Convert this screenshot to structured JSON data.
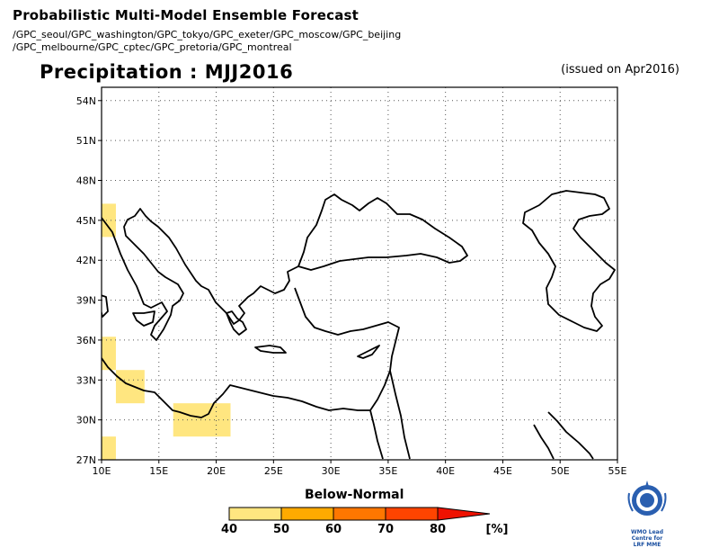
{
  "header": {
    "title": "Probabilistic Multi-Model Ensemble Forecast",
    "sources_line1": "/GPC_seoul/GPC_washington/GPC_tokyo/GPC_exeter/GPC_moscow/GPC_beijing",
    "sources_line2": "/GPC_melbourne/GPC_cptec/GPC_pretoria/GPC_montreal"
  },
  "map": {
    "title": "Precipitation : MJJ2016",
    "issued": "(issued on Apr2016)",
    "lat_labels": [
      "54N",
      "51N",
      "48N",
      "45N",
      "42N",
      "39N",
      "36N",
      "33N",
      "30N",
      "27N"
    ],
    "lon_labels": [
      "10E",
      "15E",
      "20E",
      "25E",
      "30E",
      "35E",
      "40E",
      "45E",
      "50E",
      "55E"
    ],
    "forecast_cells": [
      {
        "lon": [
          10,
          11.25
        ],
        "lat": [
          43.75,
          46.25
        ],
        "category": "40-50"
      },
      {
        "lon": [
          10,
          11.25
        ],
        "lat": [
          33.75,
          36.25
        ],
        "category": "40-50"
      },
      {
        "lon": [
          11.25,
          13.75
        ],
        "lat": [
          31.25,
          33.75
        ],
        "category": "40-50"
      },
      {
        "lon": [
          16.25,
          21.25
        ],
        "lat": [
          28.75,
          31.25
        ],
        "category": "40-50"
      },
      {
        "lon": [
          10,
          11.25
        ],
        "lat": [
          26.25,
          28.75
        ],
        "category": "40-50"
      }
    ]
  },
  "colorbar": {
    "title": "Below-Normal",
    "labels": [
      "40",
      "50",
      "60",
      "70",
      "80"
    ],
    "unit": "[%]",
    "colors": [
      "#ffe680",
      "#ffaa00",
      "#ff7700",
      "#ff4400",
      "#ee1100"
    ]
  },
  "logo": {
    "line1": "WMO Lead Centre for",
    "line2": "LRF MME"
  }
}
